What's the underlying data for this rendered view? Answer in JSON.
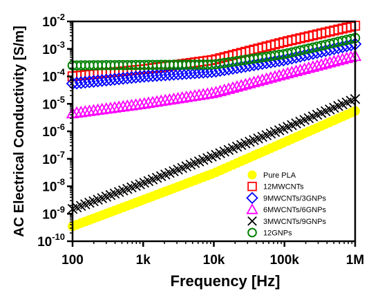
{
  "chart_data": {
    "type": "scatter",
    "xlabel": "Frequency [Hz]",
    "ylabel": "AC Electrical Conductivity [S/m]",
    "xscale": "log",
    "yscale": "log",
    "xlim": [
      100,
      1000000
    ],
    "ylim": [
      1e-10,
      0.01
    ],
    "x_ticks": [
      {
        "value": 100,
        "label": "100"
      },
      {
        "value": 1000,
        "label": "1k"
      },
      {
        "value": 10000,
        "label": "10k"
      },
      {
        "value": 100000,
        "label": "100k"
      },
      {
        "value": 1000000,
        "label": "1M"
      }
    ],
    "y_ticks": [
      {
        "value": 1e-10,
        "base": "10",
        "exp": "-10"
      },
      {
        "value": 1e-09,
        "base": "10",
        "exp": "-9"
      },
      {
        "value": 1e-08,
        "base": "10",
        "exp": "-8"
      },
      {
        "value": 1e-07,
        "base": "10",
        "exp": "-7"
      },
      {
        "value": 1e-06,
        "base": "10",
        "exp": "-6"
      },
      {
        "value": 1e-05,
        "base": "10",
        "exp": "-5"
      },
      {
        "value": 0.0001,
        "base": "10",
        "exp": "-4"
      },
      {
        "value": 0.001,
        "base": "10",
        "exp": "-3"
      },
      {
        "value": 0.01,
        "base": "10",
        "exp": "-2"
      }
    ],
    "grid": false,
    "legend_position": "bottom-right",
    "series": [
      {
        "name": "Pure PLA",
        "marker": "filled-circle",
        "color": "#FFFF00",
        "x": [
          100,
          1000,
          10000,
          100000,
          1000000
        ],
        "y": [
          3.5e-10,
          3.2e-09,
          3e-08,
          4e-07,
          5.5e-06
        ]
      },
      {
        "name": "12MWCNTs",
        "marker": "open-square",
        "color": "#FF0000",
        "x": [
          100,
          1000,
          10000,
          100000,
          1000000
        ],
        "y": [
          0.0001,
          0.00018,
          0.0004,
          0.0018,
          0.007
        ]
      },
      {
        "name": "9MWCNTs/3GNPs",
        "marker": "open-diamond",
        "color": "#0000FF",
        "x": [
          100,
          1000,
          10000,
          100000,
          1000000
        ],
        "y": [
          5.5e-05,
          0.0001,
          0.00015,
          0.0004,
          0.0015
        ]
      },
      {
        "name": "6MWCNTs/6GNPs",
        "marker": "open-triangle",
        "color": "#FF00FF",
        "x": [
          100,
          1000,
          10000,
          100000,
          1000000
        ],
        "y": [
          4.5e-06,
          1e-05,
          2.5e-05,
          0.00012,
          0.00055
        ]
      },
      {
        "name": "3MWCNTs/9GNPs",
        "marker": "x",
        "color": "#000000",
        "x": [
          100,
          1000,
          10000,
          100000,
          1000000
        ],
        "y": [
          1.5e-09,
          1.3e-08,
          1.3e-07,
          1.3e-06,
          1.5e-05
        ]
      },
      {
        "name": "12GNPs",
        "marker": "open-circle",
        "color": "#008000",
        "x": [
          100,
          1000,
          10000,
          100000,
          1000000
        ],
        "y": [
          0.00025,
          0.00026,
          0.00027,
          0.00065,
          0.0025
        ]
      }
    ]
  }
}
